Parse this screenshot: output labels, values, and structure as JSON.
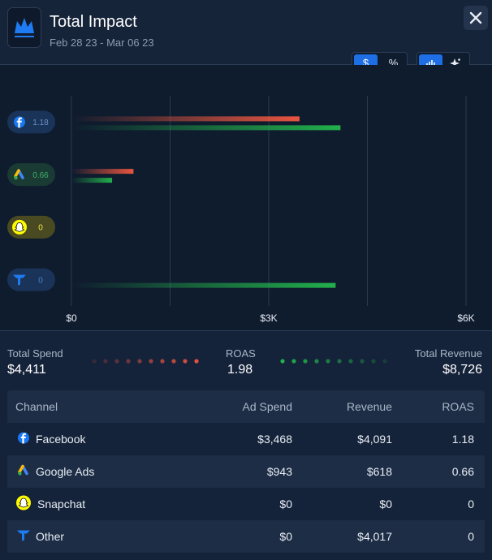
{
  "header": {
    "title": "Total Impact",
    "date_range": "Feb 28 23 - Mar 06 23"
  },
  "toggles": {
    "currency": "$",
    "percent": "%"
  },
  "chart_data": {
    "type": "bar",
    "orientation": "horizontal",
    "categories": [
      "1.18",
      "0.66",
      "0",
      "0"
    ],
    "series": [
      {
        "color": "#e8553f",
        "values": [
          3468,
          943,
          0,
          0
        ]
      },
      {
        "color": "#22b04b",
        "values": [
          4091,
          618,
          0,
          4017
        ]
      }
    ],
    "xlim": [
      0,
      6000
    ],
    "xticks": [
      {
        "value": 0,
        "label": "$0"
      },
      {
        "value": 1500,
        "label": null
      },
      {
        "value": 3000,
        "label": "$3K"
      },
      {
        "value": 4500,
        "label": null
      },
      {
        "value": 6000,
        "label": "$6K"
      }
    ],
    "grid": true
  },
  "summary": {
    "spend_label": "Total Spend",
    "spend": "$4,411",
    "roas_label": "ROAS",
    "roas": "1.98",
    "revenue_label": "Total Revenue",
    "revenue": "$8,726"
  },
  "table": {
    "columns": [
      "Channel",
      "Ad Spend",
      "Revenue",
      "ROAS"
    ],
    "rows": [
      [
        "Facebook",
        "$3,468",
        "$4,091",
        "1.18"
      ],
      [
        "Google Ads",
        "$943",
        "$618",
        "0.66"
      ],
      [
        "Snapchat",
        "$0",
        "$0",
        "0"
      ],
      [
        "Other",
        "$0",
        "$4,017",
        "0"
      ]
    ]
  }
}
